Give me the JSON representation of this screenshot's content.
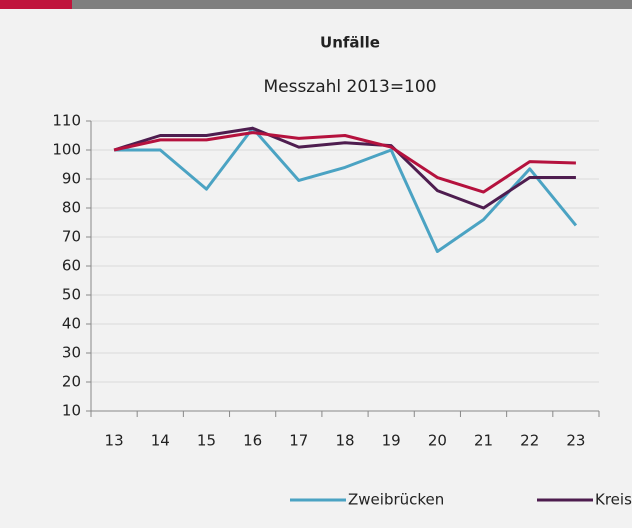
{
  "chart_data": {
    "type": "line",
    "title": "Unfälle",
    "subtitle": "Messzahl 2013=100",
    "categories": [
      "13",
      "14",
      "15",
      "16",
      "17",
      "18",
      "19",
      "20",
      "21",
      "22",
      "23"
    ],
    "series": [
      {
        "name": "Zweibrücken",
        "color": "#4ba3c3",
        "values": [
          100,
          100,
          86.5,
          107.5,
          89.5,
          94,
          100,
          65,
          76,
          93.5,
          74
        ]
      },
      {
        "name": "Kreisf",
        "color": "#4e1d4f",
        "values": [
          100,
          105,
          105,
          107.5,
          101,
          102.5,
          101.5,
          86,
          80,
          90.5,
          90.5
        ]
      },
      {
        "color": "#b5123e",
        "values": [
          100,
          103.5,
          103.5,
          106,
          104,
          105,
          101,
          90.5,
          85.5,
          96,
          95.5
        ]
      }
    ],
    "ylim": [
      10,
      110
    ],
    "yticks": [
      10,
      20,
      30,
      40,
      50,
      60,
      70,
      80,
      90,
      100,
      110
    ],
    "grid": true
  }
}
